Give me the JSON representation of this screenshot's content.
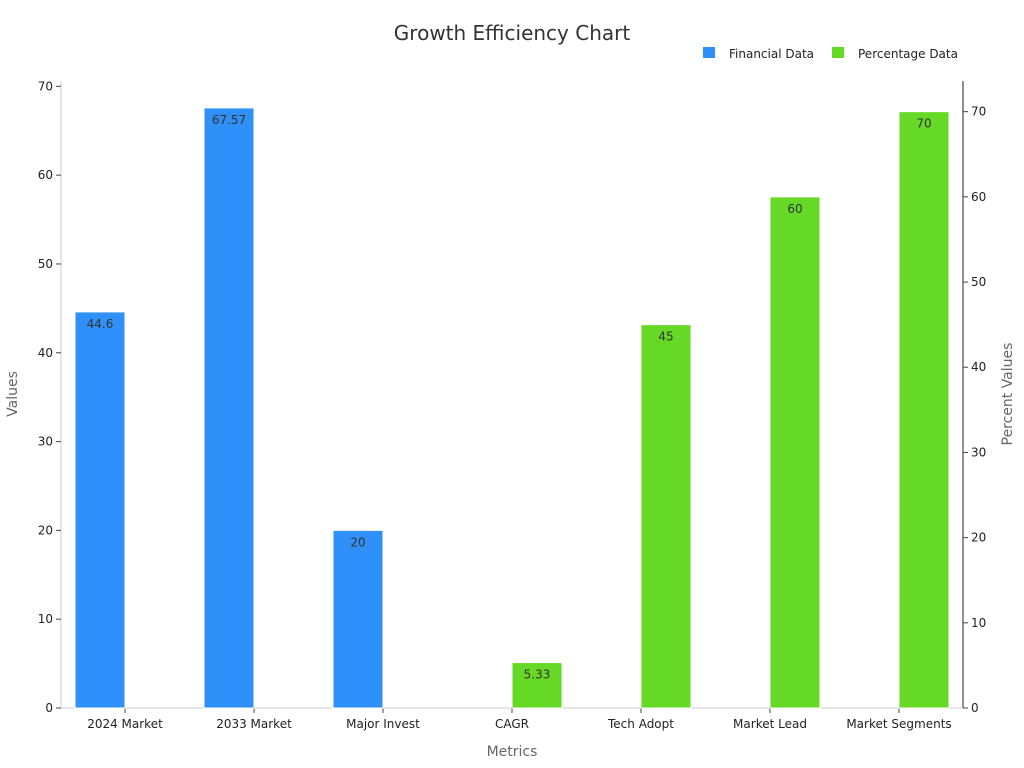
{
  "chart_data": {
    "type": "bar",
    "title": "Growth Efficiency Chart",
    "xlabel": "Metrics",
    "ylabel": "Values",
    "y2label": "Percent Values",
    "categories": [
      "2024 Market",
      "2033 Market",
      "Major Invest",
      "CAGR",
      "Tech Adopt",
      "Market Lead",
      "Market Segments"
    ],
    "ylim": [
      0,
      70.6
    ],
    "y2lim": [
      0,
      73.6
    ],
    "yticks": [
      0,
      10,
      20,
      30,
      40,
      50,
      60,
      70
    ],
    "y2ticks": [
      0,
      10,
      20,
      30,
      40,
      50,
      60,
      70
    ],
    "grid": false,
    "legend_position": "top-right",
    "series": [
      {
        "name": "Financial Data",
        "axis": "left",
        "color": "#2e90f8",
        "values": [
          44.6,
          67.57,
          20,
          null,
          null,
          null,
          null
        ],
        "labels": [
          "44.6",
          "67.57",
          "20",
          null,
          null,
          null,
          null
        ]
      },
      {
        "name": "Percentage Data",
        "axis": "right",
        "color": "#66d926",
        "values": [
          null,
          null,
          null,
          5.33,
          45,
          60,
          70
        ],
        "labels": [
          null,
          null,
          null,
          "5.33",
          "45",
          "60",
          "70"
        ]
      }
    ]
  }
}
